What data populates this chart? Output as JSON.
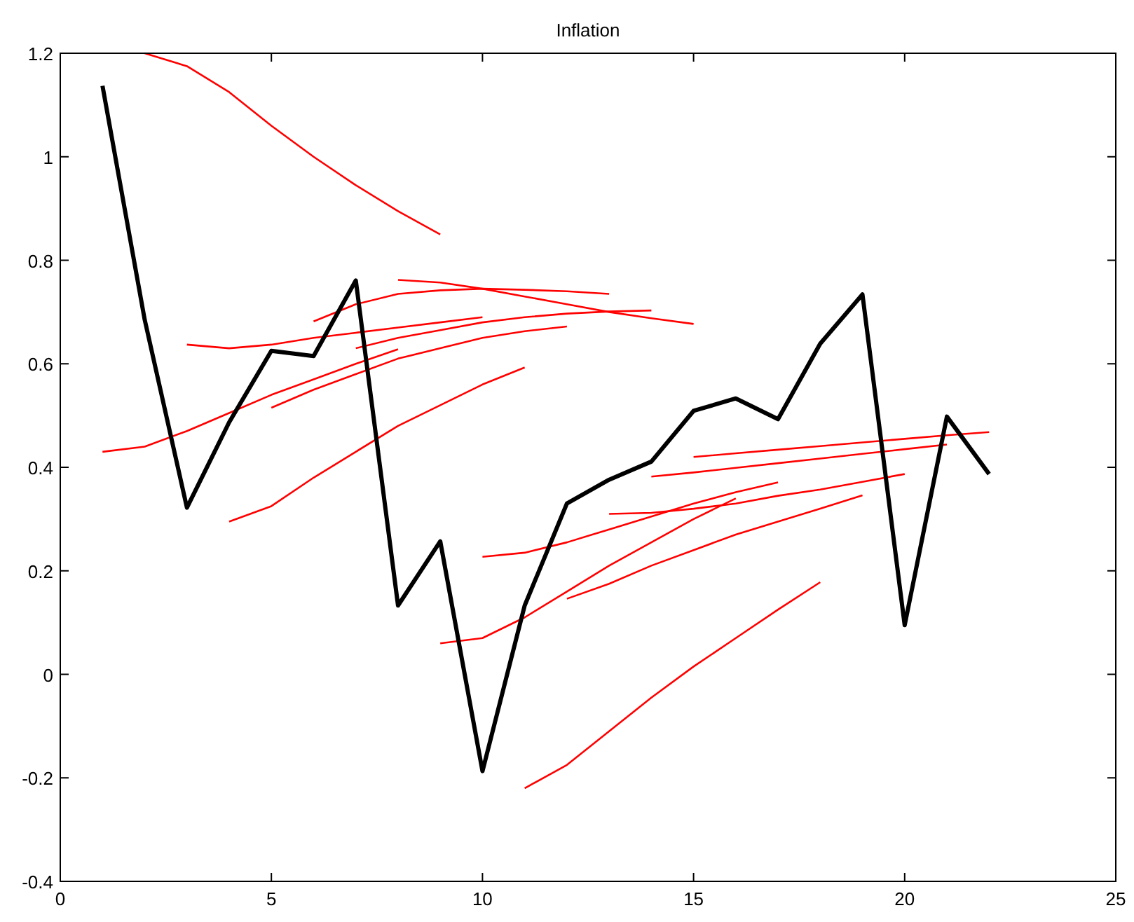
{
  "chart_data": {
    "type": "line",
    "title": "Inflation",
    "xlim": [
      0,
      25
    ],
    "ylim": [
      -0.4,
      1.2
    ],
    "xticks": [
      0,
      5,
      10,
      15,
      20,
      25
    ],
    "yticks": [
      -0.4,
      -0.2,
      0,
      0.2,
      0.4,
      0.6,
      0.8,
      1,
      1.2
    ],
    "grid": false,
    "series": [
      {
        "color": "#ff0000",
        "x": [
          2,
          3,
          4,
          5,
          6,
          7,
          8,
          9
        ],
        "values": [
          1.2,
          1.175,
          1.125,
          1.06,
          1.0,
          0.945,
          0.895,
          0.85
        ]
      },
      {
        "color": "#ff0000",
        "x": [
          1,
          2,
          3,
          4,
          5,
          6,
          7,
          8
        ],
        "values": [
          0.43,
          0.44,
          0.47,
          0.505,
          0.54,
          0.57,
          0.6,
          0.628
        ]
      },
      {
        "color": "#ff0000",
        "x": [
          3,
          4,
          5,
          6,
          7,
          8,
          9,
          10
        ],
        "values": [
          0.637,
          0.63,
          0.637,
          0.65,
          0.66,
          0.67,
          0.68,
          0.69
        ]
      },
      {
        "color": "#ff0000",
        "x": [
          4,
          5,
          6,
          7,
          8,
          9,
          10,
          11
        ],
        "values": [
          0.295,
          0.325,
          0.38,
          0.43,
          0.48,
          0.52,
          0.56,
          0.593
        ]
      },
      {
        "color": "#ff0000",
        "x": [
          5,
          6,
          7,
          8,
          9,
          10,
          11,
          12
        ],
        "values": [
          0.515,
          0.55,
          0.58,
          0.61,
          0.63,
          0.65,
          0.663,
          0.672
        ]
      },
      {
        "color": "#ff0000",
        "x": [
          6,
          7,
          8,
          9,
          10,
          11,
          12,
          13
        ],
        "values": [
          0.682,
          0.715,
          0.735,
          0.742,
          0.745,
          0.743,
          0.74,
          0.735
        ]
      },
      {
        "color": "#ff0000",
        "x": [
          7,
          8,
          9,
          10,
          11,
          12,
          13,
          14
        ],
        "values": [
          0.63,
          0.65,
          0.665,
          0.68,
          0.69,
          0.697,
          0.701,
          0.703
        ]
      },
      {
        "color": "#ff0000",
        "x": [
          8,
          9,
          10,
          11,
          12,
          13,
          14,
          15
        ],
        "values": [
          0.762,
          0.757,
          0.745,
          0.73,
          0.715,
          0.7,
          0.688,
          0.677
        ]
      },
      {
        "color": "#ff0000",
        "x": [
          9,
          10,
          11,
          12,
          13,
          14,
          15,
          16
        ],
        "values": [
          0.06,
          0.07,
          0.11,
          0.16,
          0.21,
          0.255,
          0.3,
          0.34
        ]
      },
      {
        "color": "#ff0000",
        "x": [
          10,
          11,
          12,
          13,
          14,
          15,
          16,
          17
        ],
        "values": [
          0.227,
          0.235,
          0.255,
          0.28,
          0.305,
          0.33,
          0.352,
          0.371
        ]
      },
      {
        "color": "#ff0000",
        "x": [
          11,
          12,
          13,
          14,
          15,
          16,
          17,
          18
        ],
        "values": [
          -0.22,
          -0.175,
          -0.11,
          -0.045,
          0.015,
          0.07,
          0.125,
          0.178
        ]
      },
      {
        "color": "#ff0000",
        "x": [
          12,
          13,
          14,
          15,
          16,
          17,
          18,
          19
        ],
        "values": [
          0.146,
          0.175,
          0.21,
          0.24,
          0.27,
          0.295,
          0.32,
          0.346
        ]
      },
      {
        "color": "#ff0000",
        "x": [
          13,
          14,
          15,
          16,
          17,
          18,
          19,
          20
        ],
        "values": [
          0.31,
          0.312,
          0.32,
          0.33,
          0.345,
          0.357,
          0.372,
          0.387
        ]
      },
      {
        "color": "#ff0000",
        "x": [
          14,
          15,
          16,
          17,
          18,
          19,
          20,
          21
        ],
        "values": [
          0.382,
          0.39,
          0.399,
          0.408,
          0.417,
          0.426,
          0.435,
          0.444
        ]
      },
      {
        "color": "#ff0000",
        "x": [
          15,
          16,
          17,
          18,
          19,
          20,
          21,
          22
        ],
        "values": [
          0.42,
          0.427,
          0.434,
          0.441,
          0.448,
          0.455,
          0.462,
          0.468
        ]
      },
      {
        "color": "#000000",
        "x": [
          1,
          2,
          3,
          4,
          5,
          6,
          7,
          8,
          9,
          10,
          11,
          12,
          13,
          14,
          15,
          16,
          17,
          18,
          19,
          20,
          21,
          22
        ],
        "values": [
          1.137,
          0.685,
          0.322,
          0.487,
          0.625,
          0.615,
          0.761,
          0.133,
          0.257,
          -0.187,
          0.133,
          0.33,
          0.376,
          0.411,
          0.509,
          0.533,
          0.493,
          0.639,
          0.734,
          0.095,
          0.498,
          0.387
        ]
      }
    ]
  }
}
